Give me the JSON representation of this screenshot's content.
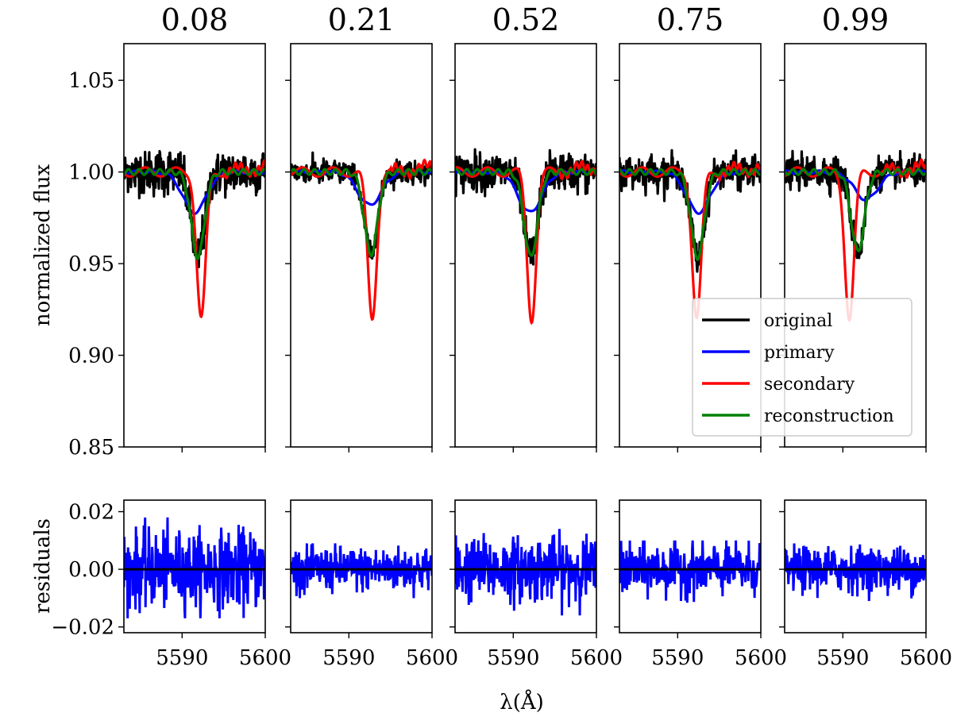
{
  "chart_data": {
    "type": "line",
    "panel_titles": [
      "0.08",
      "0.21",
      "0.52",
      "0.75",
      "0.99"
    ],
    "xlabel": "λ(Å)",
    "ylabel_top": "normalized flux",
    "ylabel_bottom": "residuals",
    "xlim": [
      5583,
      5600
    ],
    "x_ticks": [
      5590,
      5600
    ],
    "x_tick_labels": [
      "5590",
      "5600"
    ],
    "ylim_top": [
      0.85,
      1.07
    ],
    "y_ticks_top": [
      0.85,
      0.9,
      0.95,
      1.0,
      1.05
    ],
    "y_tick_labels_top": [
      "0.85",
      "0.90",
      "0.95",
      "1.00",
      "1.05"
    ],
    "ylim_bottom": [
      -0.022,
      0.024
    ],
    "y_ticks_bottom": [
      -0.02,
      0.0,
      0.02
    ],
    "y_tick_labels_bottom": [
      "−0.02",
      "0.00",
      "0.02"
    ],
    "legend": {
      "placement": "lower-right of fifth panel",
      "entries": [
        {
          "label": "original",
          "color": "#000000"
        },
        {
          "label": "primary",
          "color": "#0000ff"
        },
        {
          "label": "secondary",
          "color": "#ff0000"
        },
        {
          "label": "reconstruction",
          "color": "#008000"
        }
      ]
    },
    "panels": [
      {
        "phase": "0.08",
        "primary_center": 5591.5,
        "primary_depth": 0.022,
        "secondary_center": 5592.3,
        "secondary_depth": 0.08,
        "noise_original": 0.006,
        "residual_amp": 0.012,
        "residual_max": 0.018,
        "residual_min": -0.017
      },
      {
        "phase": "0.21",
        "primary_center": 5592.5,
        "primary_depth": 0.018,
        "secondary_center": 5592.8,
        "secondary_depth": 0.08,
        "noise_original": 0.003,
        "residual_amp": 0.007,
        "residual_max": 0.009,
        "residual_min": -0.01
      },
      {
        "phase": "0.52",
        "primary_center": 5592.0,
        "primary_depth": 0.022,
        "secondary_center": 5592.2,
        "secondary_depth": 0.08,
        "noise_original": 0.005,
        "residual_amp": 0.01,
        "residual_max": 0.014,
        "residual_min": -0.016
      },
      {
        "phase": "0.75",
        "primary_center": 5592.5,
        "primary_depth": 0.022,
        "secondary_center": 5592.3,
        "secondary_depth": 0.08,
        "noise_original": 0.004,
        "residual_amp": 0.008,
        "residual_max": 0.01,
        "residual_min": -0.017
      },
      {
        "phase": "0.99",
        "primary_center": 5592.8,
        "primary_depth": 0.015,
        "secondary_center": 5590.8,
        "secondary_depth": 0.08,
        "noise_original": 0.004,
        "residual_amp": 0.007,
        "residual_max": 0.009,
        "residual_min": -0.011
      }
    ],
    "series_colors": {
      "original": "#000000",
      "primary": "#0000ff",
      "secondary": "#ff0000",
      "reconstruction": "#008000",
      "residuals": "#0000ff",
      "zero_line": "#000000"
    },
    "grid": false
  }
}
